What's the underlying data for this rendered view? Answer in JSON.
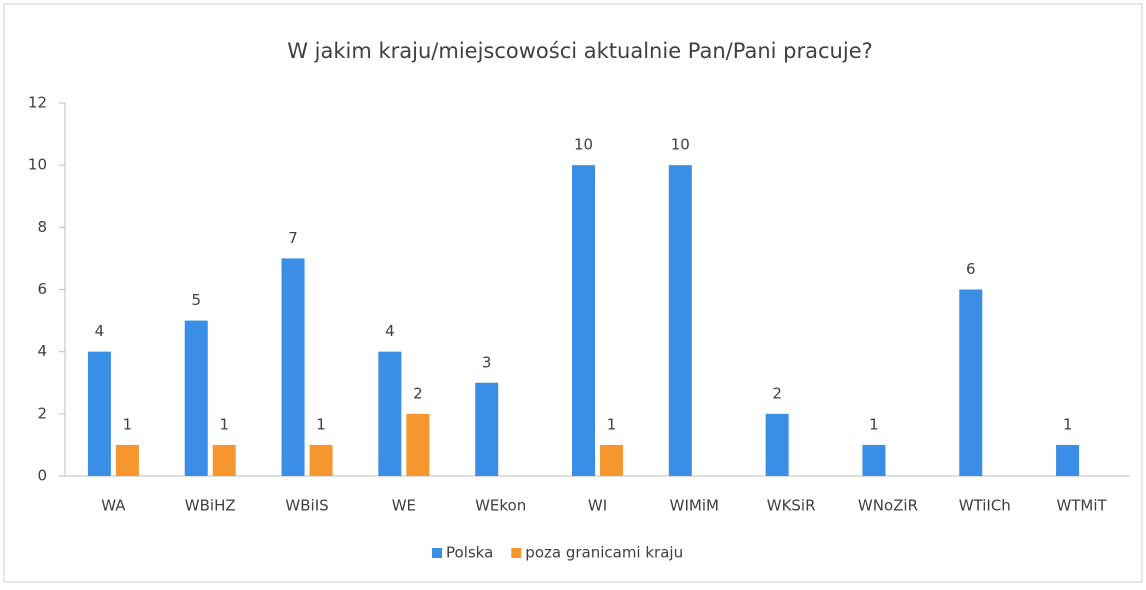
{
  "chart_data": {
    "type": "bar",
    "title": "W jakim kraju/miejscowości aktualnie Pan/Pani pracuje?",
    "categories": [
      "WA",
      "WBiHZ",
      "WBiIS",
      "WE",
      "WEkon",
      "WI",
      "WIMiM",
      "WKSiR",
      "WNoZiR",
      "WTiICh",
      "WTMiT"
    ],
    "series": [
      {
        "name": "Polska",
        "color": "#3a8ee6",
        "values": [
          4,
          5,
          7,
          4,
          3,
          10,
          10,
          2,
          1,
          6,
          1
        ]
      },
      {
        "name": "poza granicami kraju",
        "color": "#f5962f",
        "values": [
          1,
          1,
          1,
          2,
          null,
          1,
          null,
          null,
          null,
          null,
          null
        ]
      }
    ],
    "ylim": [
      0,
      12
    ],
    "yticks": [
      0,
      2,
      4,
      6,
      8,
      10,
      12
    ],
    "grid": false,
    "legend": "bottom"
  }
}
